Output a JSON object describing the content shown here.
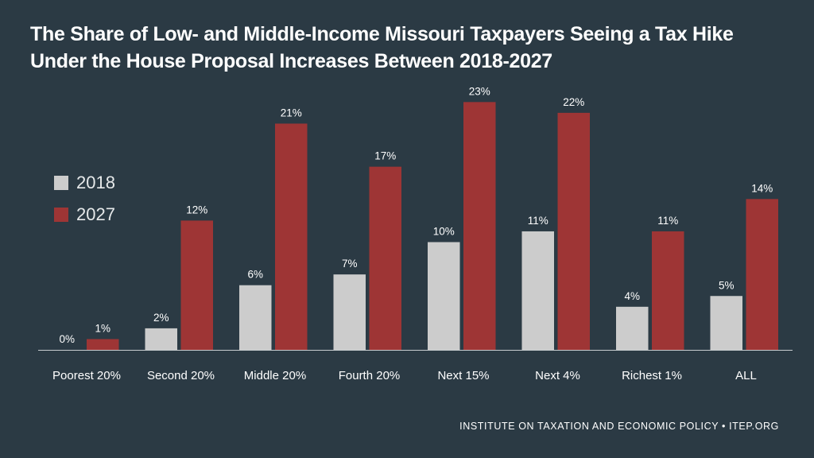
{
  "title": {
    "line1": "The Share of Low- and Middle-Income Missouri Taxpayers Seeing a Tax Hike",
    "line2": "Under the House Proposal Increases Between 2018-2027"
  },
  "legend": [
    {
      "label": "2018",
      "color": "#cccccc"
    },
    {
      "label": "2027",
      "color": "#9e3535"
    }
  ],
  "footer": "INSTITUTE ON TAXATION AND ECONOMIC POLICY • ITEP.ORG",
  "chart_data": {
    "type": "bar",
    "title": "The Share of Low- and Middle-Income Missouri Taxpayers Seeing a Tax Hike Under the House Proposal Increases Between 2018-2027",
    "categories": [
      "Poorest 20%",
      "Second 20%",
      "Middle 20%",
      "Fourth 20%",
      "Next 15%",
      "Next 4%",
      "Richest 1%",
      "ALL"
    ],
    "series": [
      {
        "name": "2018",
        "values": [
          0,
          2,
          6,
          7,
          10,
          11,
          4,
          5
        ],
        "labels": [
          "0%",
          "2%",
          "6%",
          "7%",
          "10%",
          "11%",
          "4%",
          "5%"
        ],
        "color": "#cccccc"
      },
      {
        "name": "2027",
        "values": [
          1,
          12,
          21,
          17,
          23,
          22,
          11,
          14
        ],
        "labels": [
          "1%",
          "12%",
          "21%",
          "17%",
          "23%",
          "22%",
          "11%",
          "14%"
        ],
        "color": "#9e3535"
      }
    ],
    "xlabel": "",
    "ylabel": "",
    "ylim": [
      0,
      24
    ],
    "grid": false,
    "legend_position": "left"
  }
}
